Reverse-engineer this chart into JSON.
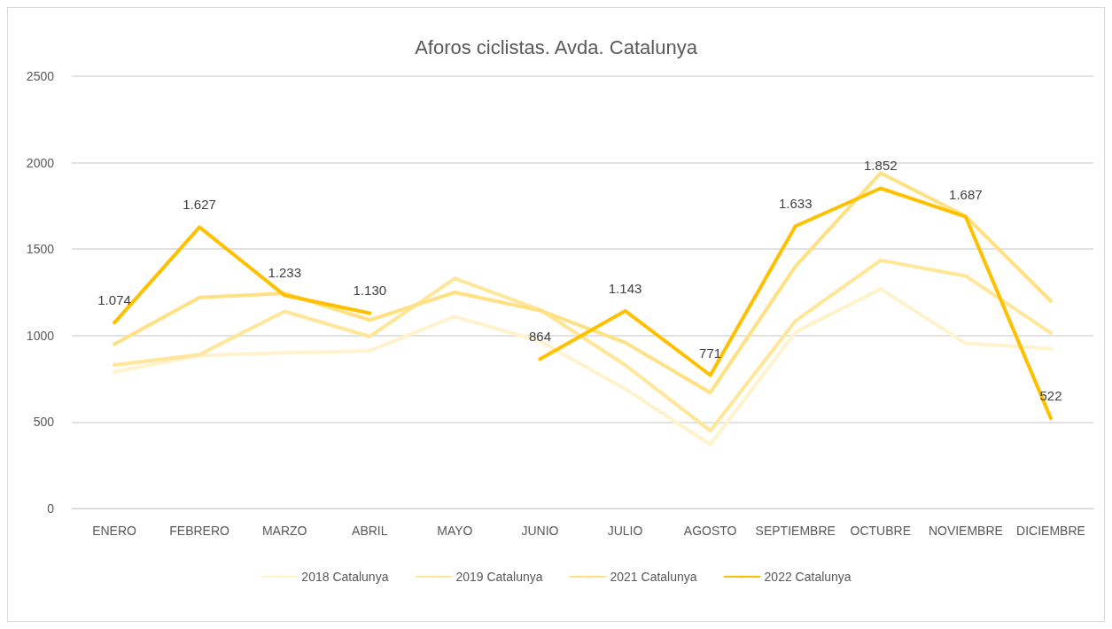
{
  "chart_data": {
    "type": "line",
    "title": "Aforos ciclistas. Avda. Catalunya",
    "categories": [
      "ENERO",
      "FEBRERO",
      "MARZO",
      "ABRIL",
      "MAYO",
      "JUNIO",
      "JULIO",
      "AGOSTO",
      "SEPTIEMBRE",
      "OCTUBRE",
      "NOVIEMBRE",
      "DICIEMBRE"
    ],
    "series": [
      {
        "name": "2018 Catalunya",
        "color": "#fff2cc",
        "values": [
          790,
          885,
          900,
          912,
          1110,
          968,
          692,
          370,
          1020,
          1270,
          955,
          925
        ]
      },
      {
        "name": "2019 Catalunya",
        "color": "#ffe699",
        "values": [
          830,
          890,
          1140,
          995,
          1330,
          1150,
          830,
          450,
          1085,
          1435,
          1345,
          1015
        ]
      },
      {
        "name": "2021 Catalunya",
        "color": "#ffe083",
        "values": [
          950,
          1220,
          1245,
          1090,
          1250,
          1145,
          960,
          670,
          1400,
          1940,
          1690,
          1200
        ]
      },
      {
        "name": "2022 Catalunya",
        "color": "#ffc000",
        "values": [
          1074,
          1627,
          1233,
          1130,
          null,
          864,
          1143,
          771,
          1633,
          1852,
          1687,
          522
        ],
        "value_labels": [
          "1.074",
          "1.627",
          "1.233",
          "1.130",
          null,
          "864",
          "1.143",
          "771",
          "1.633",
          "1.852",
          "1.687",
          "522"
        ]
      }
    ],
    "ylim": [
      0,
      2500
    ],
    "yticks": [
      0,
      500,
      1000,
      1500,
      2000,
      2500
    ],
    "grid": "y",
    "legend": "bottom",
    "marker": "none",
    "line_style": "solid"
  }
}
